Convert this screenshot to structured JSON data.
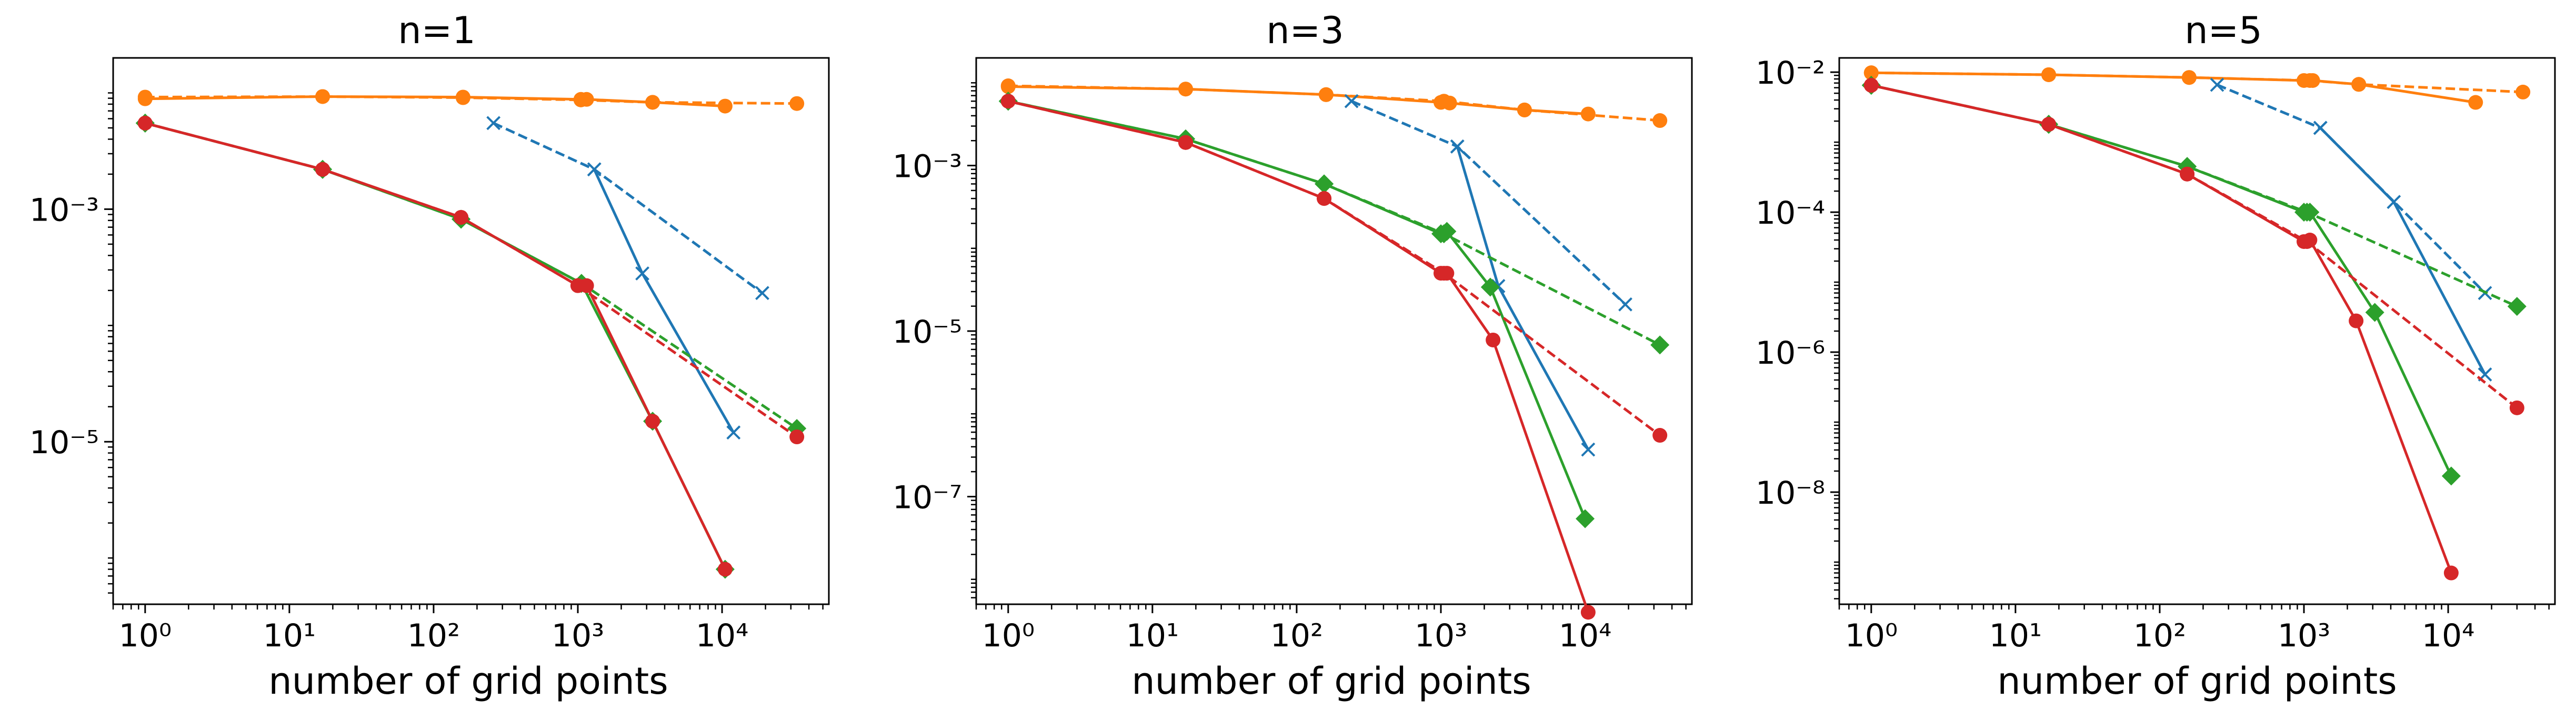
{
  "chart_data": [
    {
      "type": "line",
      "title": "n=1",
      "xlabel": "number of grid points",
      "ylabel": "",
      "x_scale": "log",
      "y_scale": "log",
      "xlim": [
        0.6,
        55000
      ],
      "ylim": [
        4e-07,
        0.02
      ],
      "x_ticks": [
        1,
        10,
        100,
        1000,
        10000
      ],
      "x_tick_labels": [
        "10⁰",
        "10¹",
        "10²",
        "10³",
        "10⁴"
      ],
      "y_ticks": [
        0.001,
        1e-05
      ],
      "y_tick_labels": [
        "10⁻³",
        "10⁻⁵"
      ],
      "grid": false,
      "legend": "none",
      "series": [
        {
          "color": "#ff7f0e",
          "linestyle": "solid",
          "marker": "circle",
          "points": [
            [
              1,
              0.0089
            ],
            [
              17,
              0.0093
            ],
            [
              160,
              0.0092
            ],
            [
              1050,
              0.0088
            ],
            [
              1150,
              0.0088
            ],
            [
              3300,
              0.0083
            ],
            [
              10500,
              0.0077
            ]
          ]
        },
        {
          "color": "#ff7f0e",
          "linestyle": "dashed",
          "marker": "circle",
          "points": [
            [
              1,
              0.0092
            ],
            [
              17,
              0.0093
            ],
            [
              160,
              0.0091
            ],
            [
              1050,
              0.0087
            ],
            [
              3300,
              0.0083
            ],
            [
              33000,
              0.0081
            ]
          ]
        },
        {
          "color": "#1f77b4",
          "linestyle": "solid",
          "marker": "x",
          "points": [
            [
              1300,
              0.0022
            ],
            [
              2800,
              0.00028
            ],
            [
              12000,
              1.2e-05
            ]
          ]
        },
        {
          "color": "#1f77b4",
          "linestyle": "dashed",
          "marker": "x",
          "points": [
            [
              260,
              0.0055
            ],
            [
              1300,
              0.0022
            ],
            [
              19000,
              0.00019
            ]
          ]
        },
        {
          "color": "#2ca02c",
          "linestyle": "solid",
          "marker": "diamond",
          "points": [
            [
              1,
              0.0055
            ],
            [
              17,
              0.0022
            ],
            [
              155,
              0.00082
            ],
            [
              1060,
              0.00023
            ],
            [
              3300,
              1.5e-05
            ],
            [
              10500,
              8e-07
            ]
          ]
        },
        {
          "color": "#2ca02c",
          "linestyle": "dashed",
          "marker": "diamond",
          "points": [
            [
              1,
              0.0055
            ],
            [
              17,
              0.0022
            ],
            [
              155,
              0.00082
            ],
            [
              1060,
              0.00023
            ],
            [
              33000,
              1.3e-05
            ]
          ]
        },
        {
          "color": "#d62728",
          "linestyle": "solid",
          "marker": "circle",
          "points": [
            [
              1,
              0.0055
            ],
            [
              17,
              0.0022
            ],
            [
              155,
              0.00085
            ],
            [
              1000,
              0.00022
            ],
            [
              1150,
              0.00022
            ],
            [
              3300,
              1.5e-05
            ],
            [
              10500,
              8e-07
            ]
          ]
        },
        {
          "color": "#d62728",
          "linestyle": "dashed",
          "marker": "circle",
          "points": [
            [
              1,
              0.0055
            ],
            [
              17,
              0.0022
            ],
            [
              155,
              0.00085
            ],
            [
              1000,
              0.00022
            ],
            [
              33000,
              1.1e-05
            ]
          ]
        }
      ]
    },
    {
      "type": "line",
      "title": "n=3",
      "xlabel": "number of grid points",
      "ylabel": "",
      "x_scale": "log",
      "y_scale": "log",
      "xlim": [
        0.6,
        55000
      ],
      "ylim": [
        5e-09,
        0.02
      ],
      "x_ticks": [
        1,
        10,
        100,
        1000,
        10000
      ],
      "x_tick_labels": [
        "10⁰",
        "10¹",
        "10²",
        "10³",
        "10⁴"
      ],
      "y_ticks": [
        0.001,
        1e-05,
        1e-07
      ],
      "y_tick_labels": [
        "10⁻³",
        "10⁻⁵",
        "10⁻⁷"
      ],
      "grid": false,
      "legend": "none",
      "series": [
        {
          "color": "#ff7f0e",
          "linestyle": "solid",
          "marker": "circle",
          "points": [
            [
              1,
              0.009
            ],
            [
              17,
              0.0084
            ],
            [
              160,
              0.0072
            ],
            [
              1000,
              0.0058
            ],
            [
              1150,
              0.0057
            ],
            [
              3800,
              0.0047
            ],
            [
              10500,
              0.0042
            ]
          ]
        },
        {
          "color": "#ff7f0e",
          "linestyle": "dashed",
          "marker": "circle",
          "points": [
            [
              1,
              0.0092
            ],
            [
              17,
              0.0084
            ],
            [
              160,
              0.0072
            ],
            [
              1050,
              0.006
            ],
            [
              3800,
              0.0047
            ],
            [
              33000,
              0.0035
            ]
          ]
        },
        {
          "color": "#1f77b4",
          "linestyle": "solid",
          "marker": "x",
          "points": [
            [
              1300,
              0.0017
            ],
            [
              2500,
              3.5e-05
            ],
            [
              10500,
              3.7e-07
            ]
          ]
        },
        {
          "color": "#1f77b4",
          "linestyle": "dashed",
          "marker": "x",
          "points": [
            [
              240,
              0.006
            ],
            [
              1300,
              0.0017
            ],
            [
              19000,
              2.1e-05
            ]
          ]
        },
        {
          "color": "#2ca02c",
          "linestyle": "solid",
          "marker": "diamond",
          "points": [
            [
              1,
              0.006
            ],
            [
              17,
              0.0021
            ],
            [
              155,
              0.0006
            ],
            [
              1000,
              0.00015
            ],
            [
              1100,
              0.00016
            ],
            [
              2200,
              3.4e-05
            ],
            [
              10000,
              5.4e-08
            ]
          ]
        },
        {
          "color": "#2ca02c",
          "linestyle": "dashed",
          "marker": "diamond",
          "points": [
            [
              1,
              0.006
            ],
            [
              17,
              0.0021
            ],
            [
              155,
              0.0006
            ],
            [
              1050,
              0.00015
            ],
            [
              33000,
              6.8e-06
            ]
          ]
        },
        {
          "color": "#d62728",
          "linestyle": "solid",
          "marker": "circle",
          "points": [
            [
              1,
              0.006
            ],
            [
              17,
              0.0019
            ],
            [
              155,
              0.0004
            ],
            [
              1000,
              5e-05
            ],
            [
              1100,
              5e-05
            ],
            [
              2300,
              7.8e-06
            ],
            [
              10500,
              4e-09
            ]
          ]
        },
        {
          "color": "#d62728",
          "linestyle": "dashed",
          "marker": "circle",
          "points": [
            [
              1,
              0.006
            ],
            [
              17,
              0.0019
            ],
            [
              155,
              0.0004
            ],
            [
              1050,
              5e-05
            ],
            [
              33000,
              5.5e-07
            ]
          ]
        }
      ]
    },
    {
      "type": "line",
      "title": "n=5",
      "xlabel": "number of grid points",
      "ylabel": "",
      "x_scale": "log",
      "y_scale": "log",
      "xlim": [
        0.6,
        55000
      ],
      "ylim": [
        2.5e-10,
        0.016
      ],
      "x_ticks": [
        1,
        10,
        100,
        1000,
        10000
      ],
      "x_tick_labels": [
        "10⁰",
        "10¹",
        "10²",
        "10³",
        "10⁴"
      ],
      "y_ticks": [
        0.01,
        0.0001,
        1e-06,
        1e-08
      ],
      "y_tick_labels": [
        "10⁻²",
        "10⁻⁴",
        "10⁻⁶",
        "10⁻⁸"
      ],
      "grid": false,
      "legend": "none",
      "series": [
        {
          "color": "#ff7f0e",
          "linestyle": "solid",
          "marker": "circle",
          "points": [
            [
              1,
              0.0098
            ],
            [
              17,
              0.0092
            ],
            [
              160,
              0.0084
            ],
            [
              1000,
              0.0076
            ],
            [
              1150,
              0.0076
            ],
            [
              2400,
              0.0067
            ],
            [
              15500,
              0.0037
            ]
          ]
        },
        {
          "color": "#ff7f0e",
          "linestyle": "dashed",
          "marker": "circle",
          "points": [
            [
              1,
              0.0098
            ],
            [
              17,
              0.0092
            ],
            [
              160,
              0.0084
            ],
            [
              1100,
              0.0076
            ],
            [
              2400,
              0.0067
            ],
            [
              33000,
              0.0052
            ]
          ]
        },
        {
          "color": "#1f77b4",
          "linestyle": "solid",
          "marker": "x",
          "points": [
            [
              1300,
              0.0016
            ],
            [
              4200,
              0.00014
            ],
            [
              18000,
              4.8e-07
            ]
          ]
        },
        {
          "color": "#1f77b4",
          "linestyle": "dashed",
          "marker": "x",
          "points": [
            [
              250,
              0.0066
            ],
            [
              1300,
              0.0016
            ],
            [
              18000,
              7e-06
            ]
          ]
        },
        {
          "color": "#2ca02c",
          "linestyle": "solid",
          "marker": "diamond",
          "points": [
            [
              1,
              0.0065
            ],
            [
              17,
              0.0018
            ],
            [
              155,
              0.00045
            ],
            [
              1000,
              0.0001
            ],
            [
              1100,
              0.0001
            ],
            [
              3100,
              3.7e-06
            ],
            [
              10500,
              1.7e-08
            ]
          ]
        },
        {
          "color": "#2ca02c",
          "linestyle": "dashed",
          "marker": "diamond",
          "points": [
            [
              1,
              0.0065
            ],
            [
              17,
              0.0018
            ],
            [
              155,
              0.00045
            ],
            [
              1050,
              0.0001
            ],
            [
              30000,
              4.5e-06
            ]
          ]
        },
        {
          "color": "#d62728",
          "linestyle": "solid",
          "marker": "circle",
          "points": [
            [
              1,
              0.0065
            ],
            [
              17,
              0.0018
            ],
            [
              155,
              0.00035
            ],
            [
              1000,
              3.8e-05
            ],
            [
              1100,
              4e-05
            ],
            [
              2300,
              2.8e-06
            ],
            [
              10500,
              7e-10
            ]
          ]
        },
        {
          "color": "#d62728",
          "linestyle": "dashed",
          "marker": "circle",
          "points": [
            [
              1,
              0.0065
            ],
            [
              17,
              0.0018
            ],
            [
              155,
              0.00035
            ],
            [
              1050,
              3.8e-05
            ],
            [
              30000,
              1.6e-07
            ]
          ]
        }
      ]
    }
  ]
}
